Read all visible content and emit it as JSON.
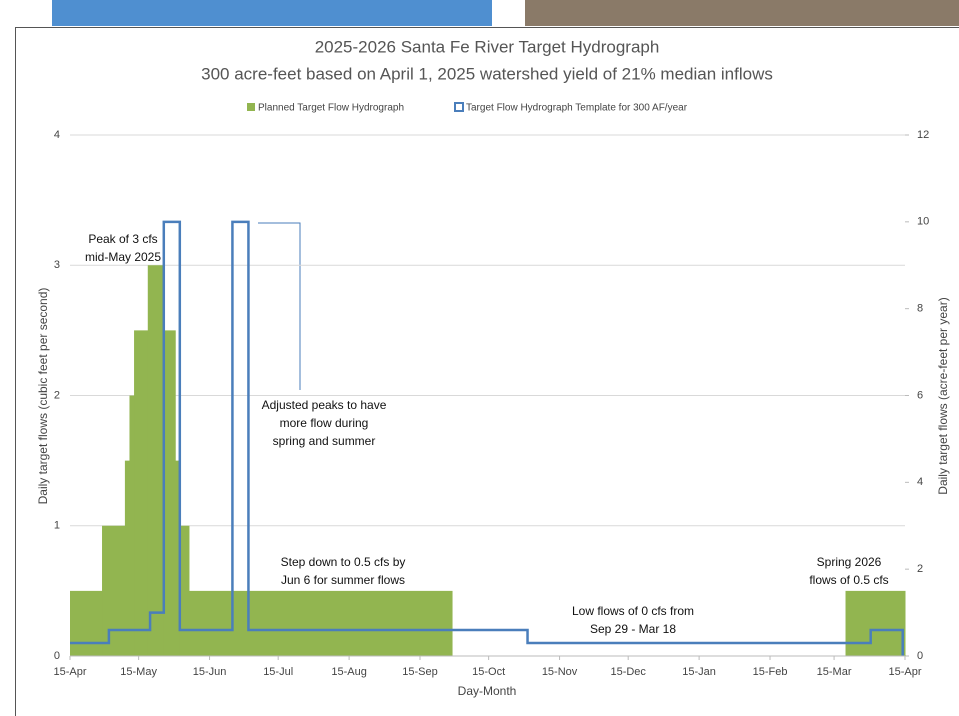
{
  "chart_data": {
    "type": "step",
    "title": "2025-2026 Santa Fe River Target Hydrograph",
    "subtitle": "300 acre-feet based on April 1, 2025 watershed yield of 21% median inflows",
    "x_label": "Day-Month",
    "y_label": "Daily target flows (cubic feet per second)",
    "y2_label": "Daily target flows (acre-feet per year)",
    "xlim": [
      0,
      365
    ],
    "xticks": [
      {
        "value": 0,
        "label": "15-Apr"
      },
      {
        "value": 30,
        "label": "15-May"
      },
      {
        "value": 61,
        "label": "15-Jun"
      },
      {
        "value": 91,
        "label": "15-Jul"
      },
      {
        "value": 122,
        "label": "15-Aug"
      },
      {
        "value": 153,
        "label": "15-Sep"
      },
      {
        "value": 183,
        "label": "15-Oct"
      },
      {
        "value": 214,
        "label": "15-Nov"
      },
      {
        "value": 244,
        "label": "15-Dec"
      },
      {
        "value": 275,
        "label": "15-Jan"
      },
      {
        "value": 306,
        "label": "15-Feb"
      },
      {
        "value": 334,
        "label": "15-Mar"
      },
      {
        "value": 365,
        "label": "15-Apr"
      }
    ],
    "ylim": [
      0,
      4
    ],
    "yticks": [
      0,
      1,
      2,
      3,
      4
    ],
    "y2lim": [
      0,
      12
    ],
    "y2ticks": [
      0,
      2,
      4,
      6,
      8,
      10,
      12
    ],
    "grid": true,
    "legend": "top",
    "series": [
      {
        "name": "Planned Target Flow Hydrograph",
        "color": "#92b550",
        "kind": "area",
        "bins": [
          0,
          14,
          24,
          26,
          28,
          34,
          41,
          46,
          48,
          52,
          167,
          339,
          365
        ],
        "values": [
          0.5,
          1,
          1.5,
          2,
          2.5,
          3,
          2.5,
          1.5,
          1,
          0.5,
          0,
          0.5
        ]
      },
      {
        "name": "Target Flow Hydrograph Template for 300 AF/year",
        "color": "#4a7ebb",
        "kind": "line",
        "axis": "y2",
        "x": [
          0,
          17,
          17,
          35,
          35,
          41,
          41,
          48,
          48,
          71,
          71,
          78,
          78,
          200,
          200,
          350,
          350,
          364,
          364
        ],
        "values": [
          0.3,
          0.3,
          0.6,
          0.6,
          1,
          1,
          10,
          10,
          0.6,
          0.6,
          10,
          10,
          0.6,
          0.6,
          0.3,
          0.3,
          0.6,
          0.6,
          0
        ]
      }
    ],
    "annotations": [
      [
        "Peak of 3 cfs",
        "mid-May 2025"
      ],
      [
        "Adjusted peaks to have",
        "more flow during",
        "spring and summer"
      ],
      [
        "Step down to 0.5 cfs by",
        "Jun 6 for summer flows"
      ],
      [
        "Low flows of 0 cfs from",
        "Sep 29 - Mar 18"
      ],
      [
        "Spring 2026",
        "flows of 0.5 cfs"
      ]
    ]
  }
}
